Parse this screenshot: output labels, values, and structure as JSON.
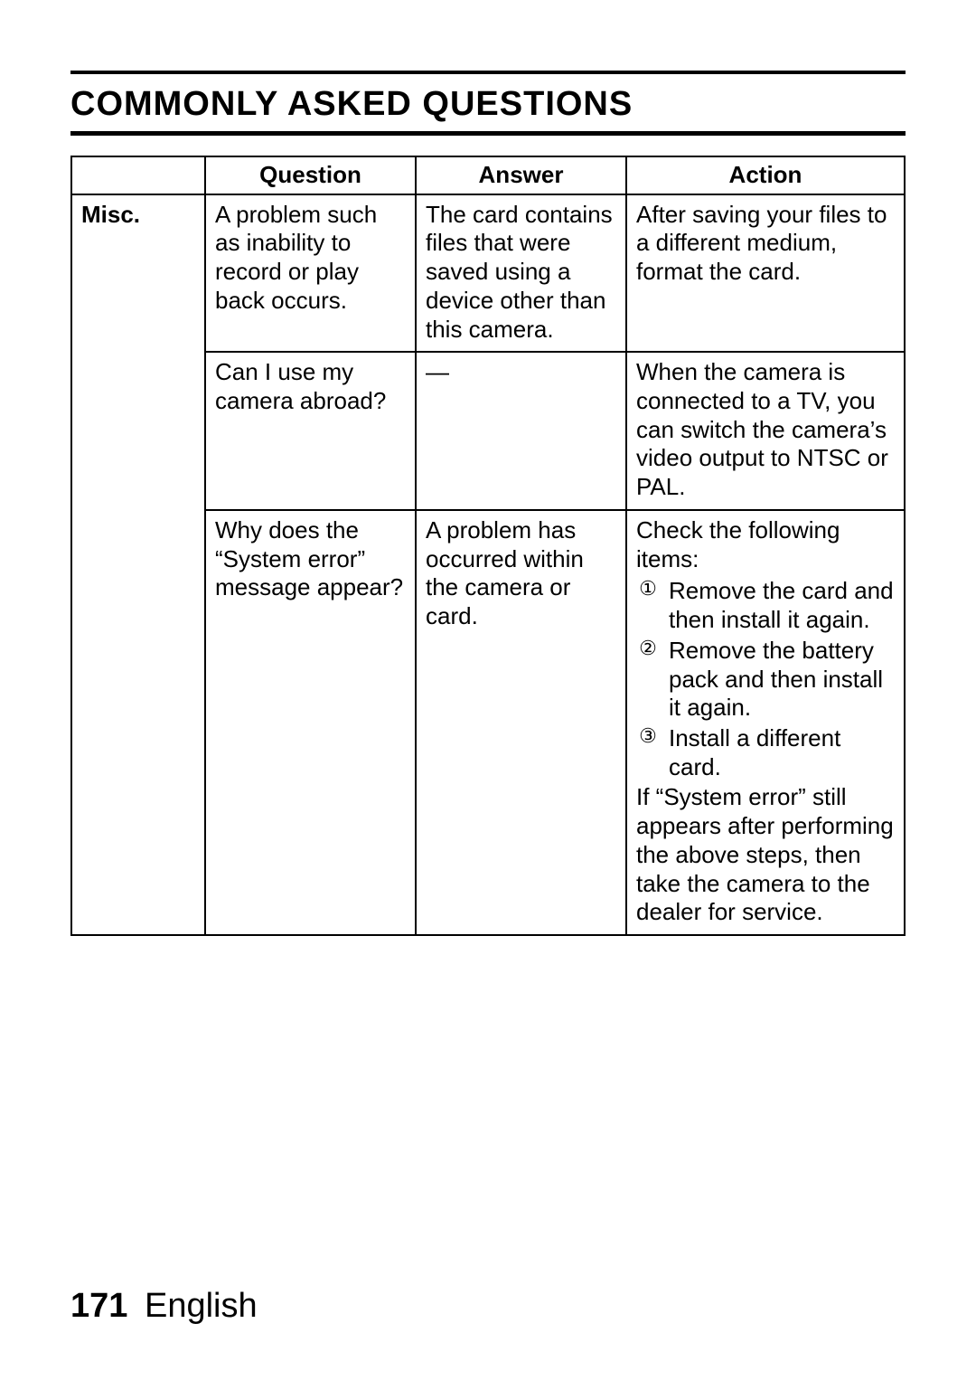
{
  "title": "COMMONLY ASKED QUESTIONS",
  "headers": {
    "blank": "",
    "question": "Question",
    "answer": "Answer",
    "action": "Action"
  },
  "category": "Misc.",
  "rows": [
    {
      "question": "A problem such as inability to record or play back occurs.",
      "answer": "The card contains files that were saved using a device other than this camera.",
      "action_simple": "After saving your files to a different medium, format the card."
    },
    {
      "question": "Can I use my camera abroad?",
      "answer": "—",
      "action_simple": "When the camera is connected to a TV, you can switch the camera’s video output to NTSC or PAL."
    },
    {
      "question": "Why does the “System error” message appear?",
      "answer": "A problem has occurred within the camera or card.",
      "action_intro": "Check the following items:",
      "steps": [
        {
          "num": "①",
          "text": "Remove the card and then install it again."
        },
        {
          "num": "②",
          "text": "Remove the battery pack and then install it again."
        },
        {
          "num": "③",
          "text": "Install a different card."
        }
      ],
      "action_outro": "If “System error” still appears after performing the above steps, then take the camera to the dealer for service."
    }
  ],
  "footer": {
    "page": "171",
    "lang": "English"
  }
}
